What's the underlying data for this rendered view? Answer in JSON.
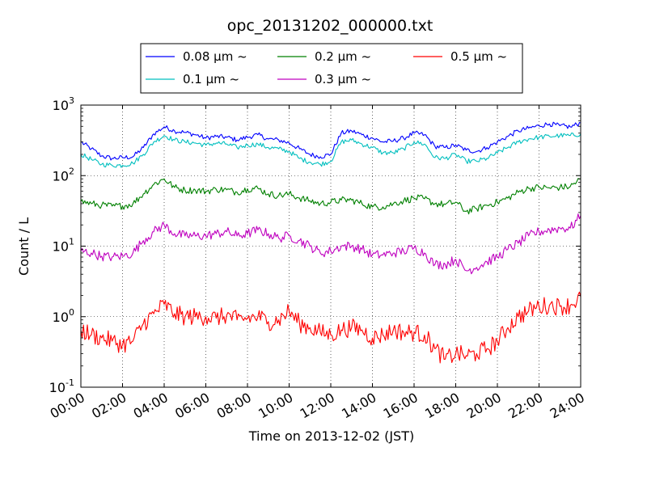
{
  "chart_data": {
    "type": "line",
    "title": "opc_20131202_000000.txt",
    "xlabel": "Time on 2013-12-02 (JST)",
    "ylabel": "Count / L",
    "x_unit": "hour",
    "xlim": [
      0,
      24
    ],
    "ylim": [
      0.1,
      1000
    ],
    "yscale": "log",
    "grid": true,
    "legend_position": "top-center",
    "x_tick_labels": [
      "00:00",
      "02:00",
      "04:00",
      "06:00",
      "08:00",
      "10:00",
      "12:00",
      "14:00",
      "16:00",
      "18:00",
      "20:00",
      "22:00",
      "24:00"
    ],
    "y_tick_labels": [
      {
        "base": "10",
        "exp": "-1"
      },
      {
        "base": "10",
        "exp": "0"
      },
      {
        "base": "10",
        "exp": "1"
      },
      {
        "base": "10",
        "exp": "2"
      },
      {
        "base": "10",
        "exp": "3"
      }
    ],
    "series": [
      {
        "name": "0.08 μm ~",
        "color": "#0000ff",
        "x": [
          0,
          0.5,
          1,
          1.5,
          2,
          2.5,
          3,
          3.5,
          4,
          4.5,
          5,
          5.5,
          6,
          6.5,
          7,
          7.5,
          8,
          8.5,
          9,
          9.5,
          10,
          10.5,
          11,
          11.5,
          12,
          12.5,
          13,
          13.5,
          14,
          14.5,
          15,
          15.5,
          16,
          16.5,
          17,
          17.5,
          18,
          18.5,
          19,
          19.5,
          20,
          20.5,
          21,
          21.5,
          22,
          22.5,
          23,
          23.5,
          24
        ],
        "values": [
          300,
          240,
          190,
          175,
          180,
          185,
          250,
          390,
          490,
          430,
          410,
          380,
          340,
          360,
          350,
          320,
          350,
          380,
          330,
          320,
          290,
          240,
          200,
          185,
          200,
          400,
          430,
          380,
          340,
          300,
          310,
          340,
          400,
          380,
          260,
          250,
          270,
          230,
          220,
          250,
          300,
          360,
          430,
          470,
          510,
          540,
          510,
          490,
          560
        ]
      },
      {
        "name": "0.1 μm ~",
        "color": "#00bfbf",
        "x": [
          0,
          0.5,
          1,
          1.5,
          2,
          2.5,
          3,
          3.5,
          4,
          4.5,
          5,
          5.5,
          6,
          6.5,
          7,
          7.5,
          8,
          8.5,
          9,
          9.5,
          10,
          10.5,
          11,
          11.5,
          12,
          12.5,
          13,
          13.5,
          14,
          14.5,
          15,
          15.5,
          16,
          16.5,
          17,
          17.5,
          18,
          18.5,
          19,
          19.5,
          20,
          20.5,
          21,
          21.5,
          22,
          22.5,
          23,
          23.5,
          24
        ],
        "values": [
          200,
          170,
          145,
          140,
          140,
          150,
          200,
          300,
          370,
          320,
          300,
          290,
          270,
          290,
          280,
          250,
          270,
          280,
          250,
          240,
          220,
          175,
          155,
          145,
          160,
          300,
          320,
          280,
          250,
          210,
          210,
          240,
          300,
          280,
          180,
          175,
          200,
          160,
          160,
          175,
          210,
          250,
          300,
          330,
          350,
          360,
          370,
          370,
          390
        ]
      },
      {
        "name": "0.2 μm ~",
        "color": "#008000",
        "x": [
          0,
          0.5,
          1,
          1.5,
          2,
          2.5,
          3,
          3.5,
          4,
          4.5,
          5,
          5.5,
          6,
          6.5,
          7,
          7.5,
          8,
          8.5,
          9,
          9.5,
          10,
          10.5,
          11,
          11.5,
          12,
          12.5,
          13,
          13.5,
          14,
          14.5,
          15,
          15.5,
          16,
          16.5,
          17,
          17.5,
          18,
          18.5,
          19,
          19.5,
          20,
          20.5,
          21,
          21.5,
          22,
          22.5,
          23,
          23.5,
          24
        ],
        "values": [
          43,
          40,
          38,
          37,
          37,
          40,
          55,
          75,
          90,
          68,
          62,
          62,
          60,
          64,
          63,
          58,
          65,
          66,
          55,
          52,
          55,
          48,
          44,
          40,
          42,
          45,
          45,
          40,
          36,
          36,
          40,
          44,
          48,
          47,
          40,
          39,
          42,
          31,
          34,
          38,
          42,
          48,
          58,
          66,
          68,
          67,
          68,
          70,
          90
        ]
      },
      {
        "name": "0.3 μm ~",
        "color": "#bf00bf",
        "x": [
          0,
          0.5,
          1,
          1.5,
          2,
          2.5,
          3,
          3.5,
          4,
          4.5,
          5,
          5.5,
          6,
          6.5,
          7,
          7.5,
          8,
          8.5,
          9,
          9.5,
          10,
          10.5,
          11,
          11.5,
          12,
          12.5,
          13,
          13.5,
          14,
          14.5,
          15,
          15.5,
          16,
          16.5,
          17,
          17.5,
          18,
          18.5,
          19,
          19.5,
          20,
          20.5,
          21,
          21.5,
          22,
          22.5,
          23,
          23.5,
          24
        ],
        "values": [
          8.5,
          8,
          7.2,
          7,
          7.2,
          8,
          12,
          16,
          20,
          15,
          14,
          14,
          14,
          15,
          16,
          14,
          15,
          17,
          15,
          13,
          14,
          12,
          10,
          8,
          8.5,
          10,
          10,
          9,
          7.5,
          7.5,
          8,
          8.5,
          9.5,
          8,
          5.5,
          5.5,
          6.5,
          4.5,
          5,
          6,
          7,
          9,
          11,
          14,
          16,
          17,
          18,
          18,
          27
        ]
      },
      {
        "name": "0.5 μm ~",
        "color": "#ff0000",
        "x": [
          0,
          0.5,
          1,
          1.5,
          2,
          2.5,
          3,
          3.5,
          4,
          4.5,
          5,
          5.5,
          6,
          6.5,
          7,
          7.5,
          8,
          8.5,
          9,
          9.5,
          10,
          10.5,
          11,
          11.5,
          12,
          12.5,
          13,
          13.5,
          14,
          14.5,
          15,
          15.5,
          16,
          16.5,
          17,
          17.5,
          18,
          18.5,
          19,
          19.5,
          20,
          20.5,
          21,
          21.5,
          22,
          22.5,
          23,
          23.5,
          24
        ],
        "values": [
          0.65,
          0.55,
          0.5,
          0.45,
          0.4,
          0.45,
          0.8,
          1.1,
          1.5,
          1.1,
          1.0,
          1.0,
          1.0,
          0.95,
          1.05,
          0.9,
          0.95,
          1.0,
          0.85,
          0.9,
          1.2,
          0.8,
          0.7,
          0.6,
          0.55,
          0.65,
          0.7,
          0.65,
          0.5,
          0.55,
          0.65,
          0.6,
          0.6,
          0.55,
          0.35,
          0.25,
          0.3,
          0.28,
          0.3,
          0.35,
          0.45,
          0.7,
          1.0,
          1.2,
          1.4,
          1.45,
          1.4,
          1.45,
          1.9
        ]
      }
    ]
  }
}
